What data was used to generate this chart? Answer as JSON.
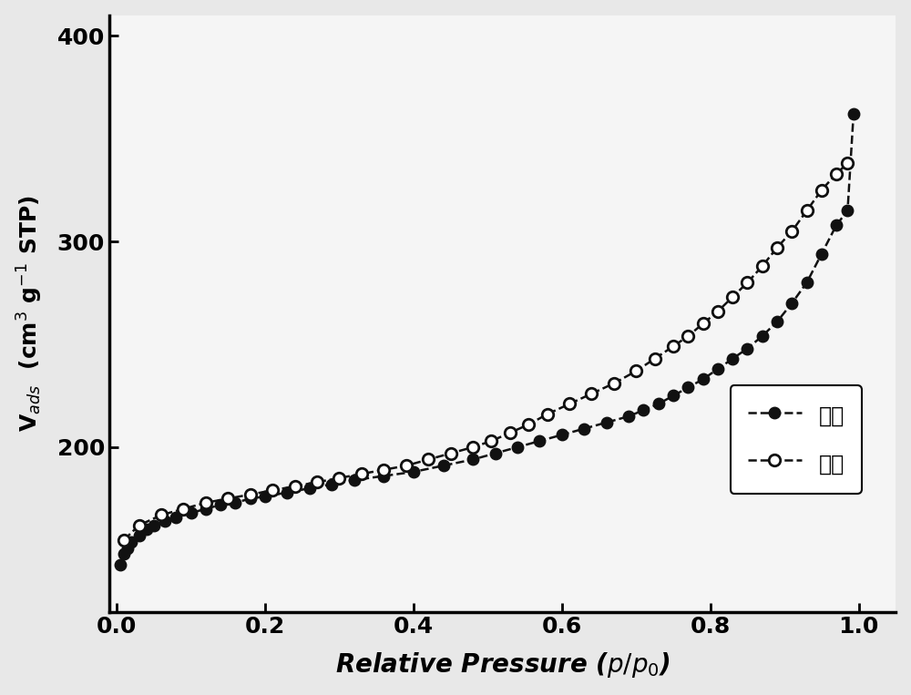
{
  "adsorption_x": [
    0.005,
    0.01,
    0.015,
    0.02,
    0.03,
    0.04,
    0.05,
    0.065,
    0.08,
    0.1,
    0.12,
    0.14,
    0.16,
    0.18,
    0.2,
    0.23,
    0.26,
    0.29,
    0.32,
    0.36,
    0.4,
    0.44,
    0.48,
    0.51,
    0.54,
    0.57,
    0.6,
    0.63,
    0.66,
    0.69,
    0.71,
    0.73,
    0.75,
    0.77,
    0.79,
    0.81,
    0.83,
    0.85,
    0.87,
    0.89,
    0.91,
    0.93,
    0.95,
    0.97,
    0.985,
    0.993
  ],
  "adsorption_y": [
    143,
    148,
    151,
    154,
    157,
    160,
    162,
    164,
    166,
    168,
    170,
    172,
    173,
    175,
    176,
    178,
    180,
    182,
    184,
    186,
    188,
    191,
    194,
    197,
    200,
    203,
    206,
    209,
    212,
    215,
    218,
    221,
    225,
    229,
    233,
    238,
    243,
    248,
    254,
    261,
    270,
    280,
    294,
    308,
    315,
    362
  ],
  "desorption_x": [
    0.01,
    0.03,
    0.06,
    0.09,
    0.12,
    0.15,
    0.18,
    0.21,
    0.24,
    0.27,
    0.3,
    0.33,
    0.36,
    0.39,
    0.42,
    0.45,
    0.48,
    0.505,
    0.53,
    0.555,
    0.58,
    0.61,
    0.64,
    0.67,
    0.7,
    0.725,
    0.75,
    0.77,
    0.79,
    0.81,
    0.83,
    0.85,
    0.87,
    0.89,
    0.91,
    0.93,
    0.95,
    0.97,
    0.985
  ],
  "desorption_y": [
    155,
    162,
    167,
    170,
    173,
    175,
    177,
    179,
    181,
    183,
    185,
    187,
    189,
    191,
    194,
    197,
    200,
    203,
    207,
    211,
    216,
    221,
    226,
    231,
    237,
    243,
    249,
    254,
    260,
    266,
    273,
    280,
    288,
    297,
    305,
    315,
    325,
    333,
    338
  ],
  "xlabel": "Relative Pressure ($p/p_0$)",
  "ylabel": "V$_{ads}$  (cm$^3$ g$^{-1}$ STP)",
  "xlim": [
    -0.01,
    1.05
  ],
  "ylim": [
    120,
    410
  ],
  "yticks": [
    200,
    300,
    400
  ],
  "xticks": [
    0.0,
    0.2,
    0.4,
    0.6,
    0.8,
    1.0
  ],
  "legend_adsorption": "吸附",
  "legend_desorption": "脱附",
  "adsorption_color": "#111111",
  "desorption_color": "#111111",
  "background_color": "#e8e8e8",
  "plot_bg_color": "#f5f5f5",
  "linewidth": 1.8,
  "markersize": 9
}
